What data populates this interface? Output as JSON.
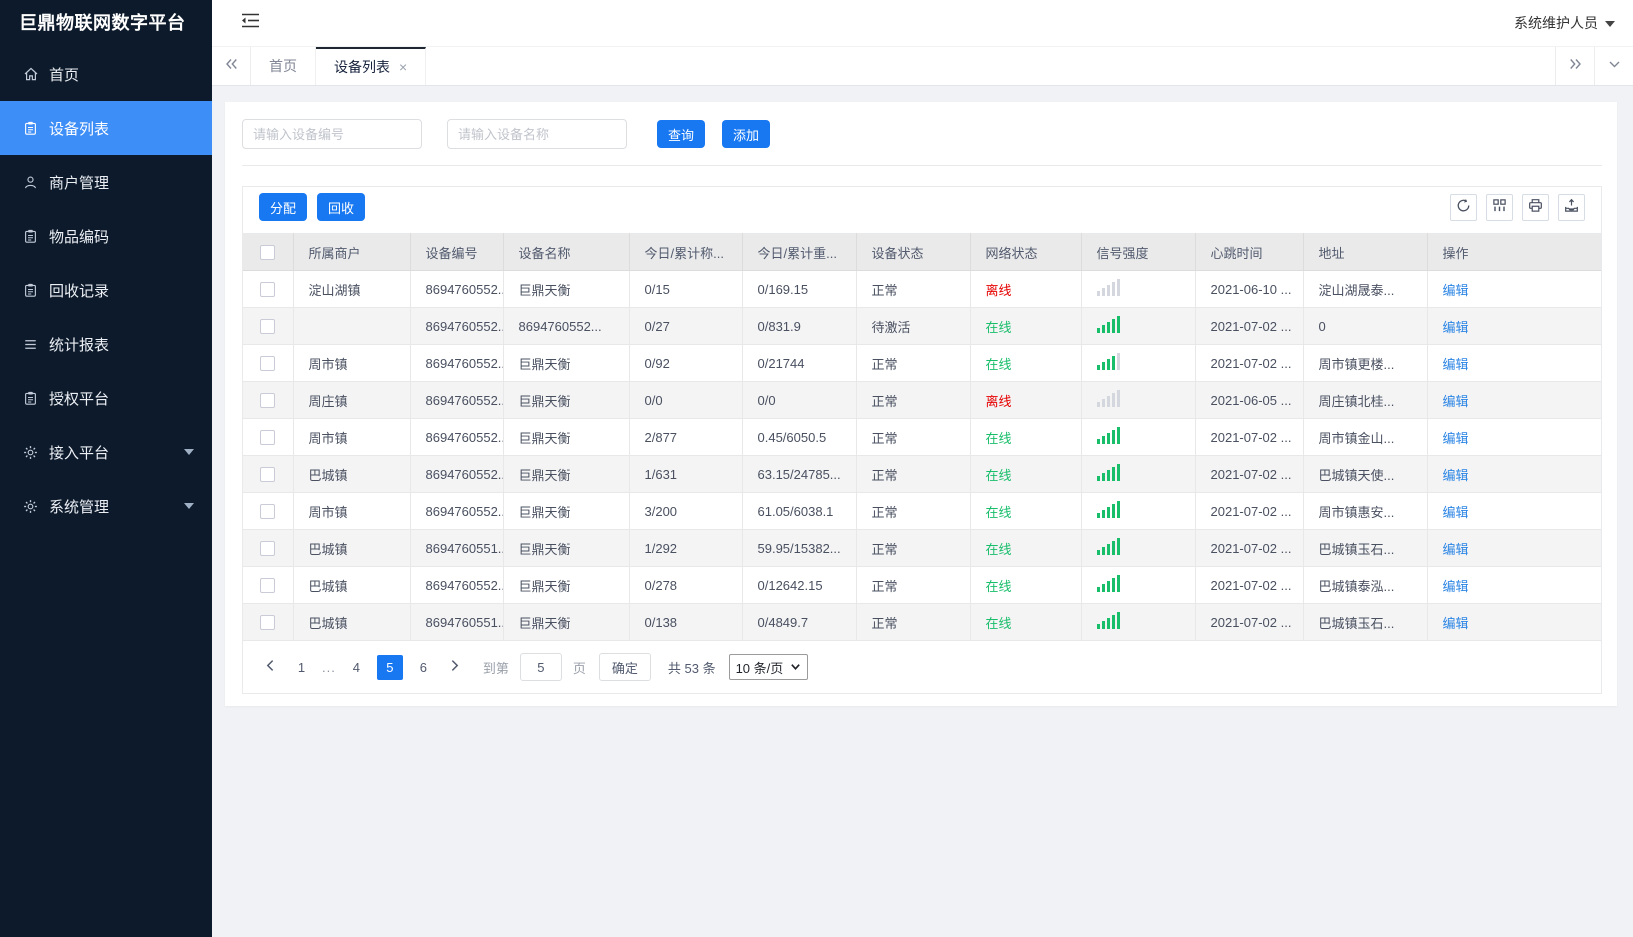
{
  "app": {
    "title": "巨鼎物联网数字平台",
    "user": "系统维护人员"
  },
  "sidebar": {
    "items": [
      {
        "key": "home",
        "label": "首页",
        "icon": "home",
        "active": false,
        "has_children": false
      },
      {
        "key": "device-list",
        "label": "设备列表",
        "icon": "clipboard",
        "active": true,
        "has_children": false
      },
      {
        "key": "merchant-mgmt",
        "label": "商户管理",
        "icon": "user",
        "active": false,
        "has_children": false
      },
      {
        "key": "item-code",
        "label": "物品编码",
        "icon": "clipboard",
        "active": false,
        "has_children": false
      },
      {
        "key": "recycle-records",
        "label": "回收记录",
        "icon": "clipboard",
        "active": false,
        "has_children": false
      },
      {
        "key": "stats-report",
        "label": "统计报表",
        "icon": "lines",
        "active": false,
        "has_children": false
      },
      {
        "key": "auth-platform",
        "label": "授权平台",
        "icon": "clipboard",
        "active": false,
        "has_children": false
      },
      {
        "key": "access-platform",
        "label": "接入平台",
        "icon": "gear",
        "active": false,
        "has_children": true
      },
      {
        "key": "system-mgmt",
        "label": "系统管理",
        "icon": "gear",
        "active": false,
        "has_children": true
      }
    ]
  },
  "tabs": {
    "items": [
      {
        "key": "home",
        "label": "首页",
        "active": false,
        "closable": false
      },
      {
        "key": "device-list",
        "label": "设备列表",
        "active": true,
        "closable": true
      }
    ]
  },
  "search": {
    "device_no_placeholder": "请输入设备编号",
    "device_name_placeholder": "请输入设备名称",
    "query_label": "查询",
    "add_label": "添加"
  },
  "toolbar": {
    "assign_label": "分配",
    "recycle_label": "回收",
    "tools": [
      "refresh",
      "columns",
      "print",
      "export"
    ]
  },
  "table": {
    "columns": [
      "所属商户",
      "设备编号",
      "设备名称",
      "今日/累计称...",
      "今日/累计重...",
      "设备状态",
      "网络状态",
      "信号强度",
      "心跳时间",
      "地址",
      "操作"
    ],
    "edit_label": "编辑",
    "rows": [
      {
        "merchant": "淀山湖镇",
        "device_no": "8694760552...",
        "device_name": "巨鼎天衡",
        "today_count": "0/15",
        "today_weight": "0/169.15",
        "device_status": "正常",
        "network_status": "离线",
        "network_color": "red",
        "signal_level": 0,
        "heartbeat": "2021-06-10 ...",
        "address": "淀山湖晟泰..."
      },
      {
        "merchant": "",
        "device_no": "8694760552...",
        "device_name": "8694760552...",
        "today_count": "0/27",
        "today_weight": "0/831.9",
        "device_status": "待激活",
        "network_status": "在线",
        "network_color": "green",
        "signal_level": 5,
        "heartbeat": "2021-07-02 ...",
        "address": "0"
      },
      {
        "merchant": "周市镇",
        "device_no": "8694760552...",
        "device_name": "巨鼎天衡",
        "today_count": "0/92",
        "today_weight": "0/21744",
        "device_status": "正常",
        "network_status": "在线",
        "network_color": "green",
        "signal_level": 4,
        "heartbeat": "2021-07-02 ...",
        "address": "周市镇更楼..."
      },
      {
        "merchant": "周庄镇",
        "device_no": "8694760552...",
        "device_name": "巨鼎天衡",
        "today_count": "0/0",
        "today_weight": "0/0",
        "device_status": "正常",
        "network_status": "离线",
        "network_color": "red",
        "signal_level": 0,
        "heartbeat": "2021-06-05 ...",
        "address": "周庄镇北桂..."
      },
      {
        "merchant": "周市镇",
        "device_no": "8694760552...",
        "device_name": "巨鼎天衡",
        "today_count": "2/877",
        "today_weight": "0.45/6050.5",
        "device_status": "正常",
        "network_status": "在线",
        "network_color": "green",
        "signal_level": 5,
        "heartbeat": "2021-07-02 ...",
        "address": "周市镇金山..."
      },
      {
        "merchant": "巴城镇",
        "device_no": "8694760552...",
        "device_name": "巨鼎天衡",
        "today_count": "1/631",
        "today_weight": "63.15/24785...",
        "device_status": "正常",
        "network_status": "在线",
        "network_color": "green",
        "signal_level": 5,
        "heartbeat": "2021-07-02 ...",
        "address": "巴城镇天使..."
      },
      {
        "merchant": "周市镇",
        "device_no": "8694760552...",
        "device_name": "巨鼎天衡",
        "today_count": "3/200",
        "today_weight": "61.05/6038.1",
        "device_status": "正常",
        "network_status": "在线",
        "network_color": "green",
        "signal_level": 5,
        "heartbeat": "2021-07-02 ...",
        "address": "周市镇惠安..."
      },
      {
        "merchant": "巴城镇",
        "device_no": "8694760551...",
        "device_name": "巨鼎天衡",
        "today_count": "1/292",
        "today_weight": "59.95/15382...",
        "device_status": "正常",
        "network_status": "在线",
        "network_color": "green",
        "signal_level": 5,
        "heartbeat": "2021-07-02 ...",
        "address": "巴城镇玉石..."
      },
      {
        "merchant": "巴城镇",
        "device_no": "8694760552...",
        "device_name": "巨鼎天衡",
        "today_count": "0/278",
        "today_weight": "0/12642.15",
        "device_status": "正常",
        "network_status": "在线",
        "network_color": "green",
        "signal_level": 5,
        "heartbeat": "2021-07-02 ...",
        "address": "巴城镇泰泓..."
      },
      {
        "merchant": "巴城镇",
        "device_no": "8694760551...",
        "device_name": "巨鼎天衡",
        "today_count": "0/138",
        "today_weight": "0/4849.7",
        "device_status": "正常",
        "network_status": "在线",
        "network_color": "green",
        "signal_level": 5,
        "heartbeat": "2021-07-02 ...",
        "address": "巴城镇玉石..."
      }
    ]
  },
  "pagination": {
    "pages": [
      {
        "label": "1",
        "active": false,
        "ellipsis": false
      },
      {
        "label": "...",
        "active": false,
        "ellipsis": true
      },
      {
        "label": "4",
        "active": false,
        "ellipsis": false
      },
      {
        "label": "5",
        "active": true,
        "ellipsis": false
      },
      {
        "label": "6",
        "active": false,
        "ellipsis": false
      }
    ],
    "goto_label": "到第",
    "goto_value": "5",
    "page_unit": "页",
    "confirm_label": "确定",
    "total_text": "共 53 条",
    "page_size_text": "10 条/页"
  },
  "colors": {
    "primary_blue": "#1778f2",
    "sidebar_bg": "#0c1a2b",
    "sidebar_active": "#3e8ef7",
    "online_green": "#19be6b",
    "offline_red": "#e60000",
    "link_blue": "#2b85e4"
  }
}
